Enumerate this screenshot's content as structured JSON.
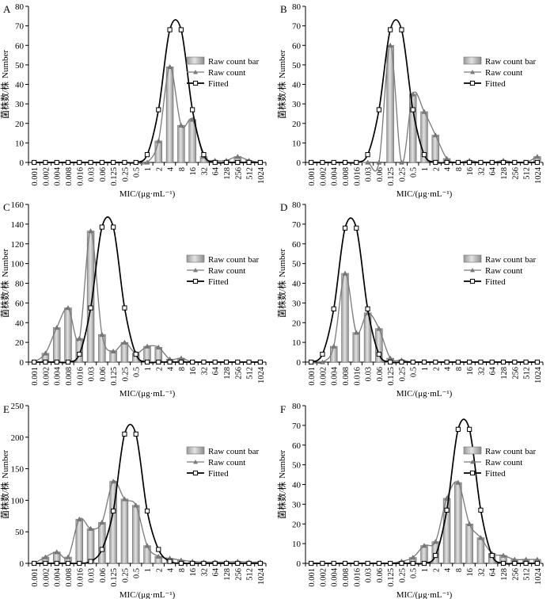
{
  "figure": {
    "ytitle_zh": "菌株数/株",
    "ytitle_en": "Number",
    "xlabel": "MIC/(μg·mL⁻¹)"
  },
  "chart_data": [
    {
      "panel": "A",
      "type": "bar+line",
      "ylim": [
        0,
        80
      ],
      "yticks": [
        0,
        10,
        20,
        30,
        40,
        50,
        60,
        70,
        80
      ],
      "categories": [
        "0.001",
        "0.002",
        "0.004",
        "0.008",
        "0.016",
        "0.03",
        "0.06",
        "0.125",
        "0.25",
        "0.5",
        "1",
        "2",
        "4",
        "8",
        "16",
        "32",
        "64",
        "128",
        "256",
        "512",
        "1024"
      ],
      "series": [
        {
          "name": "Raw count bar",
          "values": [
            0,
            0,
            0,
            0,
            0,
            0,
            0,
            0,
            0,
            0,
            0,
            11,
            49,
            19,
            22,
            3,
            1,
            1,
            3,
            1,
            0
          ]
        },
        {
          "name": "Raw count",
          "values": [
            0,
            0,
            0,
            0,
            0,
            0,
            0,
            0,
            0,
            0,
            0,
            11,
            49,
            19,
            22,
            3,
            1,
            1,
            3,
            1,
            0
          ]
        },
        {
          "name": "Fitted",
          "values": [
            0,
            0,
            0,
            0,
            0,
            0,
            0,
            0,
            0,
            0,
            4,
            27,
            68,
            68,
            27,
            4,
            0,
            0,
            0,
            0,
            0
          ]
        }
      ],
      "legend_position": "right"
    },
    {
      "panel": "B",
      "type": "bar+line",
      "ylim": [
        0,
        80
      ],
      "yticks": [
        0,
        10,
        20,
        30,
        40,
        50,
        60,
        70,
        80
      ],
      "categories": [
        "0.001",
        "0.002",
        "0.004",
        "0.008",
        "0.016",
        "0.03",
        "0.06",
        "0.125",
        "0.25",
        "0.5",
        "1",
        "2",
        "4",
        "8",
        "16",
        "32",
        "64",
        "128",
        "256",
        "512",
        "1024"
      ],
      "series": [
        {
          "name": "Raw count bar",
          "values": [
            0,
            0,
            0,
            0,
            0,
            0,
            0,
            60,
            0,
            35,
            26,
            14,
            2,
            0,
            1,
            0,
            0,
            1,
            0,
            0,
            3
          ]
        },
        {
          "name": "Raw count",
          "values": [
            0,
            0,
            0,
            0,
            0,
            0,
            0,
            60,
            0,
            35,
            26,
            14,
            2,
            0,
            1,
            0,
            0,
            1,
            0,
            0,
            3
          ]
        },
        {
          "name": "Fitted",
          "values": [
            0,
            0,
            0,
            0,
            0,
            4,
            27,
            68,
            68,
            27,
            4,
            0,
            0,
            0,
            0,
            0,
            0,
            0,
            0,
            0,
            0
          ]
        }
      ],
      "legend_position": "right"
    },
    {
      "panel": "C",
      "type": "bar+line",
      "ylim": [
        0,
        160
      ],
      "yticks": [
        0,
        20,
        40,
        60,
        80,
        100,
        120,
        140,
        160
      ],
      "categories": [
        "0.001",
        "0.002",
        "0.004",
        "0.008",
        "0.016",
        "0.03",
        "0.06",
        "0.125",
        "0.25",
        "0.5",
        "1",
        "2",
        "4",
        "8",
        "16",
        "32",
        "64",
        "128",
        "256",
        "512",
        "1024"
      ],
      "series": [
        {
          "name": "Raw count bar",
          "values": [
            0,
            9,
            35,
            55,
            24,
            133,
            28,
            11,
            20,
            9,
            16,
            15,
            3,
            4,
            0,
            0,
            0,
            0,
            0,
            0,
            0
          ]
        },
        {
          "name": "Raw count",
          "values": [
            0,
            9,
            35,
            55,
            24,
            133,
            28,
            11,
            20,
            9,
            16,
            15,
            3,
            4,
            0,
            0,
            0,
            0,
            0,
            0,
            0
          ]
        },
        {
          "name": "Fitted",
          "values": [
            0,
            0,
            0,
            0,
            8,
            55,
            137,
            137,
            55,
            8,
            0,
            0,
            0,
            0,
            0,
            0,
            0,
            0,
            0,
            0,
            0
          ]
        }
      ],
      "legend_position": "right"
    },
    {
      "panel": "D",
      "type": "bar+line",
      "ylim": [
        0,
        80
      ],
      "yticks": [
        0,
        10,
        20,
        30,
        40,
        50,
        60,
        70,
        80
      ],
      "categories": [
        "0.001",
        "0.002",
        "0.004",
        "0.008",
        "0.016",
        "0.03",
        "0.06",
        "0.125",
        "0.25",
        "0.5",
        "1",
        "2",
        "4",
        "8",
        "16",
        "32",
        "64",
        "128",
        "256",
        "512",
        "1024"
      ],
      "series": [
        {
          "name": "Raw count bar",
          "values": [
            0,
            0,
            8,
            45,
            15,
            25,
            17,
            2,
            1,
            0,
            0,
            0,
            0,
            0,
            0,
            0,
            0,
            0,
            0,
            0,
            0
          ]
        },
        {
          "name": "Raw count",
          "values": [
            0,
            0,
            8,
            45,
            15,
            25,
            17,
            2,
            1,
            0,
            0,
            0,
            0,
            0,
            0,
            0,
            0,
            0,
            0,
            0,
            0
          ]
        },
        {
          "name": "Fitted",
          "values": [
            0,
            4,
            27,
            68,
            68,
            27,
            4,
            0,
            0,
            0,
            0,
            0,
            0,
            0,
            0,
            0,
            0,
            0,
            0,
            0,
            0
          ]
        }
      ],
      "legend_position": "right"
    },
    {
      "panel": "E",
      "type": "bar+line",
      "ylim": [
        0,
        250
      ],
      "yticks": [
        0,
        50,
        100,
        150,
        200,
        250
      ],
      "categories": [
        "0.001",
        "0.002",
        "0.004",
        "0.008",
        "0.016",
        "0.03",
        "0.06",
        "0.125",
        "0.25",
        "0.5",
        "1",
        "2",
        "4",
        "8",
        "16",
        "32",
        "64",
        "128",
        "256",
        "512",
        "1024"
      ],
      "series": [
        {
          "name": "Raw count bar",
          "values": [
            0,
            10,
            18,
            10,
            70,
            55,
            65,
            130,
            102,
            92,
            28,
            11,
            8,
            5,
            3,
            2,
            2,
            2,
            3,
            2,
            2
          ]
        },
        {
          "name": "Raw count",
          "values": [
            0,
            10,
            18,
            10,
            70,
            55,
            65,
            130,
            102,
            92,
            28,
            11,
            8,
            5,
            3,
            2,
            2,
            2,
            3,
            2,
            2
          ]
        },
        {
          "name": "Fitted",
          "values": [
            0,
            0,
            0,
            0,
            0,
            3,
            22,
            83,
            205,
            205,
            83,
            22,
            3,
            0,
            0,
            0,
            0,
            0,
            0,
            0,
            0
          ]
        }
      ],
      "legend_position": "right"
    },
    {
      "panel": "F",
      "type": "bar+line",
      "ylim": [
        0,
        80
      ],
      "yticks": [
        0,
        10,
        20,
        30,
        40,
        50,
        60,
        70,
        80
      ],
      "categories": [
        "0.001",
        "0.002",
        "0.004",
        "0.008",
        "0.016",
        "0.03",
        "0.06",
        "0.125",
        "0.25",
        "0.5",
        "1",
        "2",
        "4",
        "8",
        "16",
        "32",
        "64",
        "128",
        "256",
        "512",
        "1024"
      ],
      "series": [
        {
          "name": "Raw count bar",
          "values": [
            0,
            0,
            0,
            0,
            0,
            0,
            0,
            0,
            1,
            3,
            9,
            11,
            33,
            41,
            20,
            13,
            5,
            4,
            2,
            2,
            2
          ]
        },
        {
          "name": "Raw count",
          "values": [
            0,
            0,
            0,
            0,
            0,
            0,
            0,
            0,
            1,
            3,
            9,
            11,
            33,
            41,
            20,
            13,
            5,
            4,
            2,
            2,
            2
          ]
        },
        {
          "name": "Fitted",
          "values": [
            0,
            0,
            0,
            0,
            0,
            0,
            0,
            0,
            0,
            0,
            0,
            4,
            27,
            68,
            68,
            27,
            4,
            0,
            0,
            0,
            0
          ]
        }
      ],
      "legend_position": "right"
    }
  ]
}
